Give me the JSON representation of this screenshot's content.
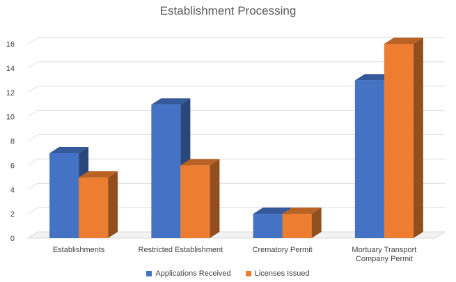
{
  "chart_data": {
    "type": "bar",
    "title": "Establishment Processing",
    "categories": [
      "Establishments",
      "Restricted Establishment",
      "Crematory Permit",
      "Mortuary Transport Company Permit"
    ],
    "category_label_lines": [
      [
        "Establishments"
      ],
      [
        "Restricted Establishment"
      ],
      [
        "Crematory Permit"
      ],
      [
        "Mortuary Transport",
        "Company Permit"
      ]
    ],
    "series": [
      {
        "name": "Applications Received",
        "values": [
          7,
          11,
          2,
          13
        ],
        "color": "#4472C4"
      },
      {
        "name": "Licenses Issued",
        "values": [
          5,
          6,
          2,
          16
        ],
        "color": "#ED7D31"
      }
    ],
    "ylim": [
      0,
      16
    ],
    "yticks": [
      0,
      2,
      4,
      6,
      8,
      10,
      12,
      14,
      16
    ],
    "grid": true,
    "legend_position": "bottom",
    "style": "3d-column"
  }
}
